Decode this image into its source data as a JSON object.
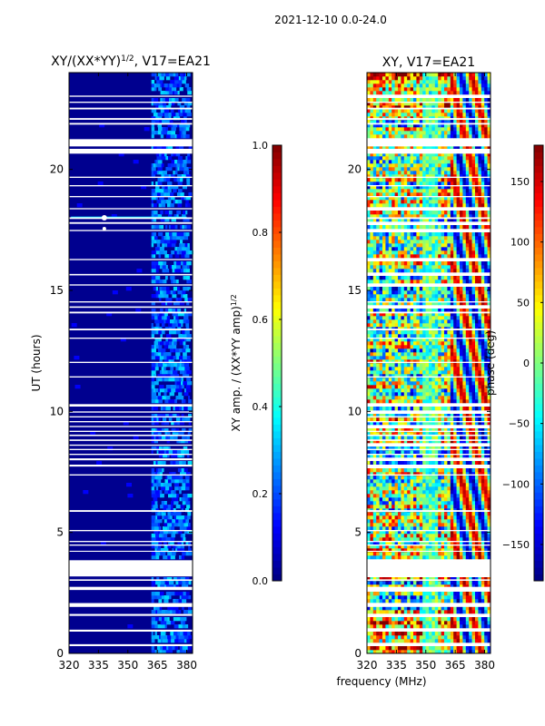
{
  "suptitle": "2021-12-10 0.0-24.0",
  "colors": {
    "background_band": "#00008f",
    "gap": "#ffffff"
  },
  "chart_data": [
    {
      "type": "heatmap",
      "title": "XY/(XX*YY)",
      "title_superscript": "1/2",
      "title_suffix": ", V17=EA21",
      "xlabel": "",
      "ylabel": "UT (hours)",
      "xlim": [
        320,
        383
      ],
      "ylim": [
        0,
        24
      ],
      "xticks": [
        320,
        335,
        350,
        365,
        380
      ],
      "xtick_labels": [
        "320",
        "335",
        "350",
        "365",
        "380"
      ],
      "yticks": [
        0,
        5,
        10,
        15,
        20
      ],
      "ytick_labels": [
        "0",
        "5",
        "10",
        "15",
        "20"
      ],
      "colormap": "jet",
      "colorbar": {
        "label": "XY amp. / (XX*YY amp)",
        "label_superscript": "1/2",
        "range": [
          0.0,
          1.0
        ],
        "ticks": [
          0.0,
          0.2,
          0.4,
          0.6,
          0.8,
          1.0
        ],
        "tick_labels": [
          "0.0",
          "0.2",
          "0.4",
          "0.6",
          "0.8",
          "1.0"
        ]
      },
      "bright_band_MHz": [
        362,
        381
      ],
      "typical_value": 0.05,
      "band_value_range": [
        0.1,
        0.35
      ]
    },
    {
      "type": "heatmap",
      "title": "XY, V17=EA21",
      "xlabel": "frequency (MHz)",
      "ylabel": "",
      "xlim": [
        320,
        383
      ],
      "ylim": [
        0,
        24
      ],
      "xticks": [
        320,
        335,
        350,
        365,
        380
      ],
      "xtick_labels": [
        "320",
        "335",
        "350",
        "365",
        "380"
      ],
      "yticks": [
        0,
        5,
        10,
        15,
        20
      ],
      "ytick_labels": [
        "0",
        "5",
        "10",
        "15",
        "20"
      ],
      "colormap": "jet",
      "colorbar": {
        "label": "phase (deg)",
        "range": [
          -180,
          180
        ],
        "ticks": [
          -150,
          -100,
          -50,
          0,
          50,
          100,
          150
        ],
        "tick_labels": [
          "−150",
          "−100",
          "−50",
          "0",
          "50",
          "100",
          "150"
        ]
      }
    }
  ],
  "flagged_gaps_hours": [
    [
      0.3,
      0.38
    ],
    [
      0.9,
      0.98
    ],
    [
      1.55,
      1.63
    ],
    [
      1.92,
      2.08
    ],
    [
      2.62,
      2.75
    ],
    [
      3.0,
      3.06
    ],
    [
      3.18,
      3.85
    ],
    [
      4.2,
      4.24
    ],
    [
      4.45,
      4.5
    ],
    [
      4.6,
      4.65
    ],
    [
      5.05,
      5.1
    ],
    [
      5.85,
      5.92
    ],
    [
      7.35,
      7.4
    ],
    [
      7.72,
      7.8
    ],
    [
      7.98,
      8.06
    ],
    [
      8.2,
      8.25
    ],
    [
      8.4,
      8.45
    ],
    [
      8.58,
      8.63
    ],
    [
      8.78,
      8.84
    ],
    [
      8.98,
      9.04
    ],
    [
      9.15,
      9.2
    ],
    [
      9.35,
      9.4
    ],
    [
      9.55,
      9.6
    ],
    [
      9.75,
      9.8
    ],
    [
      9.95,
      10.0
    ],
    [
      10.2,
      10.3
    ],
    [
      11.4,
      11.45
    ],
    [
      12.0,
      12.05
    ],
    [
      13.0,
      13.05
    ],
    [
      13.35,
      13.42
    ],
    [
      14.05,
      14.12
    ],
    [
      14.28,
      14.34
    ],
    [
      14.5,
      14.55
    ],
    [
      15.2,
      15.25
    ],
    [
      15.62,
      15.68
    ],
    [
      16.25,
      16.3
    ],
    [
      17.45,
      17.5
    ],
    [
      17.75,
      17.82
    ],
    [
      17.95,
      18.02
    ],
    [
      18.35,
      18.4
    ],
    [
      18.85,
      18.9
    ],
    [
      19.3,
      19.35
    ],
    [
      19.65,
      19.7
    ],
    [
      20.65,
      20.85
    ],
    [
      20.95,
      21.25
    ],
    [
      21.85,
      21.92
    ],
    [
      22.05,
      22.12
    ],
    [
      22.48,
      22.55
    ],
    [
      22.75,
      22.8
    ],
    [
      23.0,
      23.05
    ]
  ]
}
